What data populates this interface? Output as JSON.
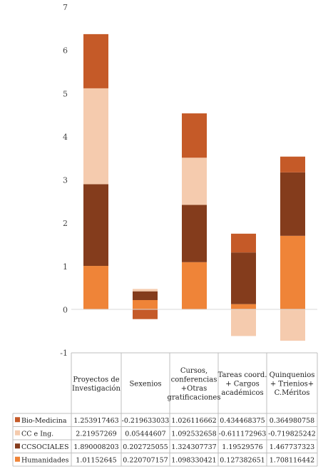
{
  "chart_data": {
    "type": "bar",
    "stacked": true,
    "categories": [
      [
        "Proyectos de",
        "Investigación"
      ],
      [
        "Sexenios"
      ],
      [
        "Cursos,",
        "conferencias",
        "+Otras",
        "gratificaciones"
      ],
      [
        "Tareas coord.",
        "+ Cargos",
        "académicos"
      ],
      [
        "Quinquenios",
        "+ Trienios+",
        "C.Méritos"
      ]
    ],
    "series": [
      {
        "name": "Bio-Medicina",
        "color": "#c55a28",
        "values": [
          1.253917463,
          -0.219633033,
          1.026116662,
          0.434468375,
          0.364980758
        ],
        "labels": [
          "1.253917463",
          "-0.219633033",
          "1.026116662",
          "0.434468375",
          "0.364980758"
        ]
      },
      {
        "name": "CC e Ing.",
        "color": "#f5cbae",
        "values": [
          2.21957269,
          0.05444607,
          1.092532658,
          -0.611172963,
          -0.719825242
        ],
        "labels": [
          "2.21957269",
          "0.05444607",
          "1.092532658",
          "-0.611172963",
          "-0.719825242"
        ]
      },
      {
        "name": "CCSOCIALES",
        "color": "#843c1c",
        "values": [
          1.890008203,
          0.202725055,
          1.324307737,
          1.19529576,
          1.467737323
        ],
        "labels": [
          "1.890008203",
          "0.202725055",
          "1.324307737",
          "1.19529576",
          "1.467737323"
        ]
      },
      {
        "name": "Humanidades",
        "color": "#ef8438",
        "values": [
          1.01152645,
          0.220707157,
          1.098330421,
          0.127382651,
          1.708116442
        ],
        "labels": [
          "1.01152645",
          "0.220707157",
          "1.098330421",
          "0.127382651",
          "1.708116442"
        ]
      }
    ],
    "yticks": [
      "7",
      "6",
      "5",
      "4",
      "3",
      "2",
      "1",
      "0",
      "-1"
    ],
    "ylim": [
      -1,
      7
    ],
    "grid": false,
    "legend": "data-table"
  }
}
